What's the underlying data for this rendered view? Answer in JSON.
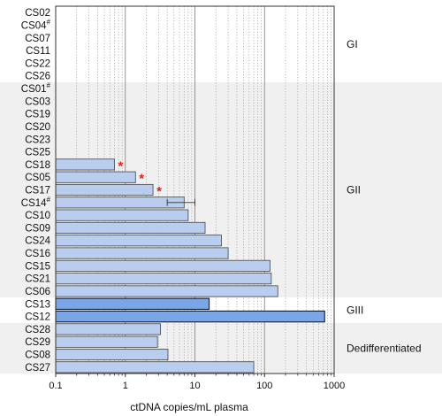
{
  "chart_data": {
    "type": "bar",
    "orientation": "horizontal",
    "xscale": "log",
    "xlim": [
      0.1,
      1000
    ],
    "x_ticks": [
      {
        "value": 0.1,
        "label": "0.1"
      },
      {
        "value": 1,
        "label": "1"
      },
      {
        "value": 10,
        "label": "10"
      },
      {
        "value": 100,
        "label": "100"
      },
      {
        "value": 1000,
        "label": "1000"
      }
    ],
    "xlabel": "ctDNA copies/mL plasma",
    "minor_grid": "dotted",
    "major_grid": "solid",
    "categories": [
      {
        "label": "CS02",
        "sup": "",
        "value": null,
        "group": "GI"
      },
      {
        "label": "CS04",
        "sup": "#",
        "value": null,
        "group": "GI"
      },
      {
        "label": "CS07",
        "sup": "",
        "value": null,
        "group": "GI"
      },
      {
        "label": "CS11",
        "sup": "",
        "value": null,
        "group": "GI"
      },
      {
        "label": "CS22",
        "sup": "",
        "value": null,
        "group": "GI"
      },
      {
        "label": "CS26",
        "sup": "",
        "value": null,
        "group": "GI"
      },
      {
        "label": "CS01",
        "sup": "#",
        "value": null,
        "group": "GII"
      },
      {
        "label": "CS03",
        "sup": "",
        "value": null,
        "group": "GII"
      },
      {
        "label": "CS19",
        "sup": "",
        "value": null,
        "group": "GII"
      },
      {
        "label": "CS20",
        "sup": "",
        "value": null,
        "group": "GII"
      },
      {
        "label": "CS23",
        "sup": "",
        "value": null,
        "group": "GII"
      },
      {
        "label": "CS25",
        "sup": "",
        "value": null,
        "group": "GII"
      },
      {
        "label": "CS18",
        "sup": "",
        "value": 0.7,
        "group": "GII",
        "asterisk": "*"
      },
      {
        "label": "CS05",
        "sup": "",
        "value": 1.4,
        "group": "GII",
        "asterisk": "*"
      },
      {
        "label": "CS17",
        "sup": "",
        "value": 2.5,
        "group": "GII",
        "asterisk": "*"
      },
      {
        "label": "CS14",
        "sup": "#",
        "value": 7,
        "group": "GII",
        "error": [
          4,
          10
        ]
      },
      {
        "label": "CS10",
        "sup": "",
        "value": 8,
        "group": "GII"
      },
      {
        "label": "CS09",
        "sup": "",
        "value": 14,
        "group": "GII"
      },
      {
        "label": "CS24",
        "sup": "",
        "value": 24,
        "group": "GII"
      },
      {
        "label": "CS16",
        "sup": "",
        "value": 30,
        "group": "GII"
      },
      {
        "label": "CS15",
        "sup": "",
        "value": 120,
        "group": "GII"
      },
      {
        "label": "CS21",
        "sup": "",
        "value": 125,
        "group": "GII"
      },
      {
        "label": "CS06",
        "sup": "",
        "value": 155,
        "group": "GII"
      },
      {
        "label": "CS13",
        "sup": "",
        "value": 16,
        "group": "GIII"
      },
      {
        "label": "CS12",
        "sup": "",
        "value": 730,
        "group": "GIII"
      },
      {
        "label": "CS28",
        "sup": "",
        "value": 3.2,
        "group": "Dedifferentiated"
      },
      {
        "label": "CS29",
        "sup": "",
        "value": 2.9,
        "group": "Dedifferentiated"
      },
      {
        "label": "CS08",
        "sup": "",
        "value": 4.1,
        "group": "Dedifferentiated"
      },
      {
        "label": "CS27",
        "sup": "",
        "value": 70,
        "group": "Dedifferentiated"
      }
    ],
    "groups": [
      {
        "name": "GI",
        "shaded": false,
        "bar_color": "#b9cdee"
      },
      {
        "name": "GII",
        "shaded": true,
        "bar_color": "#b9cdee"
      },
      {
        "name": "GIII",
        "shaded": false,
        "bar_color": "#7aa6e6"
      },
      {
        "name": "Dedifferentiated",
        "shaded": true,
        "bar_color": "#b9cdee"
      }
    ],
    "colors": {
      "bar_default": "#b9cdee",
      "bar_giii": "#7aa6e6",
      "bar_stroke": "#444444",
      "shade": "#f0f0f0",
      "asterisk": "#e0241b"
    }
  }
}
